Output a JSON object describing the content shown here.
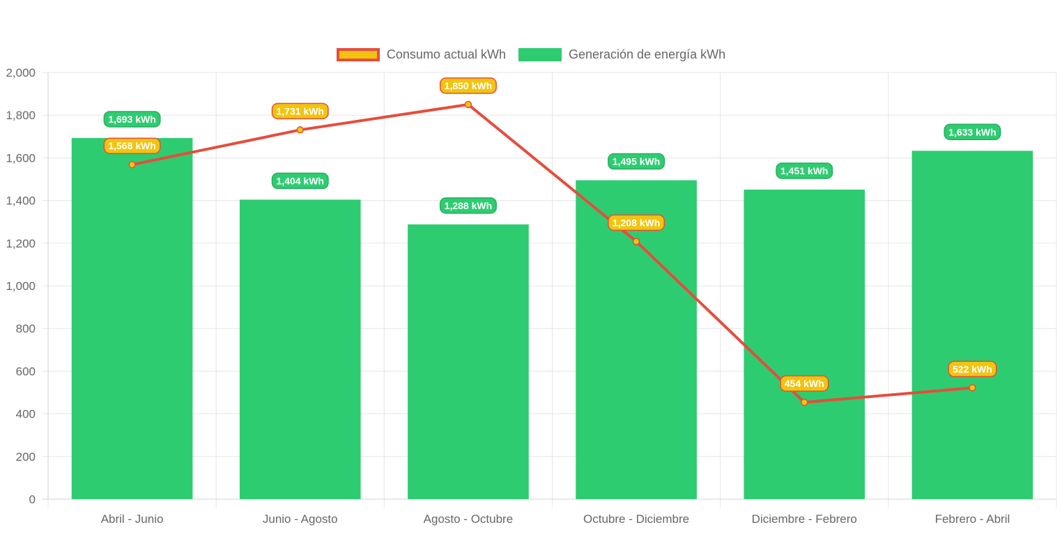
{
  "chart_data": {
    "type": "bar",
    "categories": [
      "Abril - Junio",
      "Junio - Agosto",
      "Agosto - Octubre",
      "Octubre - Diciembre",
      "Diciembre - Febrero",
      "Febrero - Abril"
    ],
    "ylim": [
      0,
      2000
    ],
    "yticks": [
      0,
      200,
      400,
      600,
      800,
      1000,
      1200,
      1400,
      1600,
      1800,
      2000
    ],
    "ytick_labels": [
      "0",
      "200",
      "400",
      "600",
      "800",
      "1,000",
      "1,200",
      "1,400",
      "1,600",
      "1,800",
      "2,000"
    ],
    "grid": true,
    "legend_position": "top",
    "series": [
      {
        "name": "Consumo actual kWh",
        "type": "line",
        "color": "#e74c3c",
        "fill": "#f1c40f",
        "values": [
          1568,
          1731,
          1850,
          1208,
          454,
          522
        ],
        "data_labels": [
          "1,568 kWh",
          "1,731 kWh",
          "1,850 kWh",
          "1,208 kWh",
          "454 kWh",
          "522 kWh"
        ]
      },
      {
        "name": "Generación de energía kWh",
        "type": "bar",
        "color": "#2ecc71",
        "values": [
          1693,
          1404,
          1288,
          1495,
          1451,
          1633
        ],
        "data_labels": [
          "1,693 kWh",
          "1,404 kWh",
          "1,288 kWh",
          "1,495 kWh",
          "1,451 kWh",
          "1,633 kWh"
        ]
      }
    ]
  }
}
